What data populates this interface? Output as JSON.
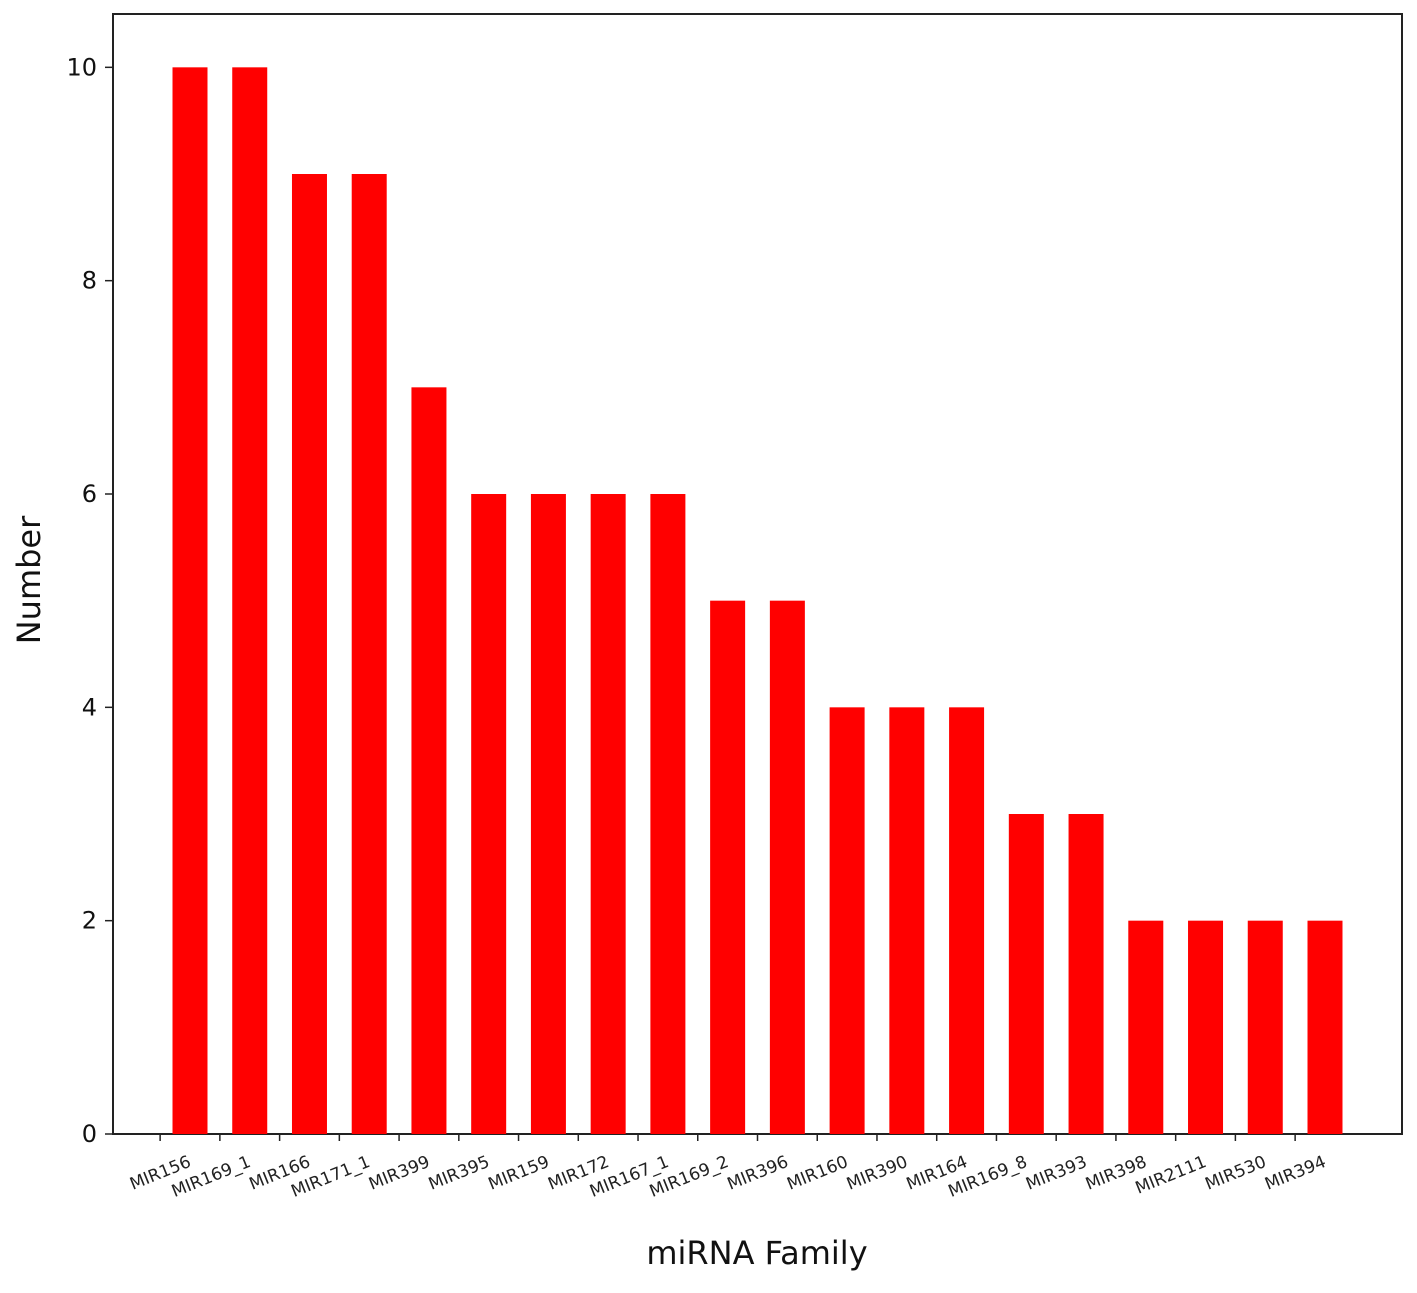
{
  "chart_data": {
    "type": "bar",
    "title": "",
    "xlabel": "miRNA Family",
    "ylabel": "Number",
    "categories": [
      "MIR156",
      "MIR169_1",
      "MIR166",
      "MIR171_1",
      "MIR399",
      "MIR395",
      "MIR159",
      "MIR172",
      "MIR167_1",
      "MIR169_2",
      "MIR396",
      "MIR160",
      "MIR390",
      "MIR164",
      "MIR169_8",
      "MIR393",
      "MIR398",
      "MIR2111",
      "MIR530",
      "MIR394"
    ],
    "values": [
      10,
      10,
      9,
      9,
      7,
      6,
      6,
      6,
      6,
      5,
      5,
      4,
      4,
      4,
      3,
      3,
      2,
      2,
      2,
      2
    ],
    "ylim": [
      0,
      10.5
    ],
    "yticks": [
      0,
      2,
      4,
      6,
      8,
      10
    ],
    "grid": false,
    "legend": "none",
    "colors": {
      "bar": "#ff0000",
      "axis": "#222222",
      "background": "#ffffff"
    }
  }
}
